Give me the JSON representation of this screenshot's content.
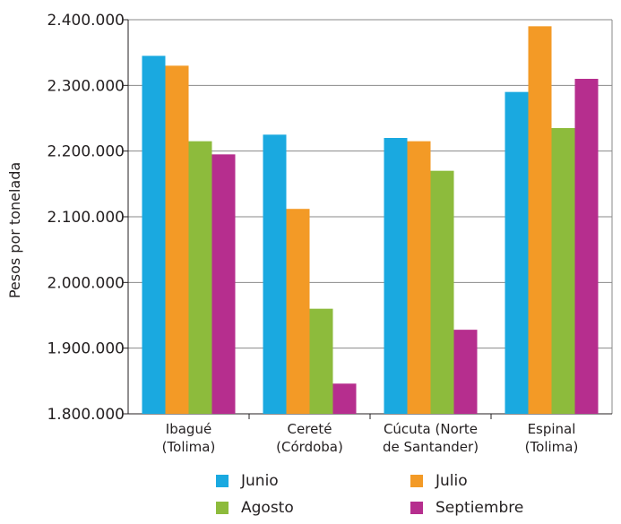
{
  "chart_data": {
    "type": "bar",
    "ylabel": "Pesos por tonelada",
    "ylim": [
      1800000,
      2400000
    ],
    "yticks": [
      1800000,
      1900000,
      2000000,
      2100000,
      2200000,
      2300000,
      2400000
    ],
    "ytick_labels": [
      "1.800.000",
      "1.900.000",
      "2.000.000",
      "2.100.000",
      "2.200.000",
      "2.300.000",
      "2.400.000"
    ],
    "grid": true,
    "legend_position": "bottom",
    "categories": [
      [
        "Ibagué",
        "(Tolima)"
      ],
      [
        "Cereté",
        "(Córdoba)"
      ],
      [
        "Cúcuta (Norte",
        "de Santander)"
      ],
      [
        "Espinal",
        "(Tolima)"
      ]
    ],
    "series": [
      {
        "name": "Junio",
        "color": "#1aa9e0",
        "values": [
          2345000,
          2225000,
          2220000,
          2290000
        ]
      },
      {
        "name": "Julio",
        "color": "#f39a26",
        "values": [
          2330000,
          2112000,
          2215000,
          2390000
        ]
      },
      {
        "name": "Agosto",
        "color": "#8dbb3c",
        "values": [
          2215000,
          1960000,
          2170000,
          2235000
        ]
      },
      {
        "name": "Septiembre",
        "color": "#b62e8e",
        "values": [
          2195000,
          1846000,
          1928000,
          2310000
        ]
      }
    ]
  }
}
